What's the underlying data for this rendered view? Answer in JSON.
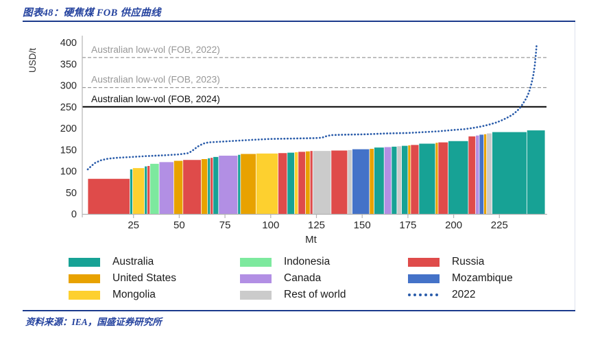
{
  "header": {
    "title": "图表48：硬焦煤 FOB 供应曲线"
  },
  "footer": {
    "source": "资料来源：IEA，国盛证券研究所"
  },
  "chart_data": {
    "type": "bar",
    "subtype": "variable-width-cost-curve-with-line",
    "title": "硬焦煤 FOB 供应曲线",
    "x_axis": {
      "label": "Mt",
      "min": 0,
      "max": 250,
      "ticks": [
        25,
        50,
        75,
        100,
        125,
        150,
        175,
        200,
        225
      ]
    },
    "y_axis": {
      "label": "USD/t",
      "min": 0,
      "max": 400,
      "ticks": [
        0,
        50,
        100,
        150,
        200,
        250,
        300,
        350,
        400
      ]
    },
    "grid": false,
    "legend_position": "bottom",
    "reference_lines": [
      {
        "label": "Australian low-vol (FOB, 2022)",
        "value": 365,
        "style": "dashed",
        "color": "#9a9a9a",
        "label_color": "#979797"
      },
      {
        "label": "Australian low-vol (FOB, 2023)",
        "value": 295,
        "style": "dashed",
        "color": "#9a9a9a",
        "label_color": "#979797"
      },
      {
        "label": "Australian low-vol (FOB, 2024)",
        "value": 250,
        "style": "solid",
        "color": "#000000",
        "label_color": "#111111"
      }
    ],
    "colors": {
      "Australia": "#17a295",
      "United States": "#e8a200",
      "Mongolia": "#fdd02f",
      "Indonesia": "#7de99e",
      "Canada": "#b28fe4",
      "Rest of world": "#cbcbcb",
      "Russia": "#df4b4a",
      "Mozambique": "#4472c8"
    },
    "segments_columns": [
      "country",
      "from_mt",
      "to_mt",
      "usd_per_t"
    ],
    "segments": [
      [
        "Russia",
        0,
        23,
        82
      ],
      [
        "Australia",
        23,
        24.5,
        104
      ],
      [
        "Mongolia",
        24.5,
        31,
        107
      ],
      [
        "Australia",
        31,
        32.5,
        111
      ],
      [
        "Russia",
        32.5,
        34,
        112
      ],
      [
        "Indonesia",
        34,
        39,
        117
      ],
      [
        "Canada",
        39,
        47,
        121
      ],
      [
        "United States",
        47,
        52,
        124
      ],
      [
        "Russia",
        52,
        62,
        126
      ],
      [
        "United States",
        62,
        65.5,
        128
      ],
      [
        "Australia",
        65.5,
        67,
        130
      ],
      [
        "Russia",
        67,
        68.5,
        131
      ],
      [
        "Australia",
        68.5,
        71.5,
        133
      ],
      [
        "Canada",
        71.5,
        82,
        136
      ],
      [
        "Australia",
        82,
        83.5,
        138
      ],
      [
        "United States",
        83.5,
        92,
        140
      ],
      [
        "Mongolia",
        92,
        104,
        141
      ],
      [
        "Russia",
        104,
        109,
        142
      ],
      [
        "Australia",
        109,
        113,
        143
      ],
      [
        "Mongolia",
        113,
        115,
        144
      ],
      [
        "Russia",
        115,
        119,
        145
      ],
      [
        "United States",
        119,
        121.5,
        146
      ],
      [
        "Russia",
        121.5,
        123,
        147
      ],
      [
        "Rest of world",
        123,
        133,
        147
      ],
      [
        "Russia",
        133,
        142,
        148
      ],
      [
        "Rest of world",
        142,
        144.5,
        149
      ],
      [
        "Mozambique",
        144.5,
        154,
        151
      ],
      [
        "United States",
        154,
        156.5,
        152
      ],
      [
        "Australia",
        156.5,
        162,
        155
      ],
      [
        "Canada",
        162,
        166,
        156
      ],
      [
        "Australia",
        166,
        169,
        157
      ],
      [
        "Rest of world",
        169,
        171.5,
        158
      ],
      [
        "Australia",
        171.5,
        175,
        159
      ],
      [
        "United States",
        175,
        176.5,
        160
      ],
      [
        "Russia",
        176.5,
        181,
        161
      ],
      [
        "Australia",
        181,
        190,
        164
      ],
      [
        "United States",
        190,
        191.5,
        166
      ],
      [
        "Russia",
        191.5,
        197,
        167
      ],
      [
        "Australia",
        197,
        208,
        170
      ],
      [
        "Russia",
        208,
        212,
        181
      ],
      [
        "Canada",
        212,
        214,
        183
      ],
      [
        "Mozambique",
        214,
        216.5,
        185
      ],
      [
        "United States",
        216.5,
        218,
        186
      ],
      [
        "Rest of world",
        218,
        221,
        188
      ],
      [
        "Australia",
        221,
        240,
        191
      ],
      [
        "Australia",
        240,
        250,
        195
      ]
    ],
    "line_series": {
      "name": "2022",
      "color": "#2a5caa",
      "style": "dotted",
      "points_mt_usd": [
        [
          0,
          104
        ],
        [
          2,
          112
        ],
        [
          4,
          119
        ],
        [
          7,
          125
        ],
        [
          11,
          129
        ],
        [
          16,
          131
        ],
        [
          24,
          133
        ],
        [
          32,
          135
        ],
        [
          42,
          137
        ],
        [
          50,
          139
        ],
        [
          55,
          142
        ],
        [
          57,
          147
        ],
        [
          60,
          157
        ],
        [
          63,
          164
        ],
        [
          66,
          167
        ],
        [
          74,
          169
        ],
        [
          82,
          171
        ],
        [
          90,
          173
        ],
        [
          100,
          175
        ],
        [
          112,
          176
        ],
        [
          124,
          177
        ],
        [
          128,
          178
        ],
        [
          130,
          181
        ],
        [
          133,
          184
        ],
        [
          140,
          185
        ],
        [
          152,
          186
        ],
        [
          164,
          188
        ],
        [
          175,
          189
        ],
        [
          184,
          191
        ],
        [
          192,
          193
        ],
        [
          200,
          196
        ],
        [
          206,
          198
        ],
        [
          211,
          201
        ],
        [
          215,
          204
        ],
        [
          219,
          208
        ],
        [
          223,
          213
        ],
        [
          226,
          218
        ],
        [
          229,
          224
        ],
        [
          232,
          231
        ],
        [
          234,
          238
        ],
        [
          236,
          246
        ],
        [
          237.5,
          255
        ],
        [
          239,
          265
        ],
        [
          240.5,
          277
        ],
        [
          241.7,
          291
        ],
        [
          242.7,
          307
        ],
        [
          243.6,
          325
        ],
        [
          244.3,
          345
        ],
        [
          244.8,
          366
        ],
        [
          245.2,
          386
        ],
        [
          245.4,
          398
        ]
      ]
    },
    "legend": [
      {
        "label": "Australia",
        "color": "#17a295",
        "swatch": "box"
      },
      {
        "label": "Indonesia",
        "color": "#7de99e",
        "swatch": "box"
      },
      {
        "label": "Russia",
        "color": "#df4b4a",
        "swatch": "box"
      },
      {
        "label": "United States",
        "color": "#e8a200",
        "swatch": "box"
      },
      {
        "label": "Canada",
        "color": "#b28fe4",
        "swatch": "box"
      },
      {
        "label": "Mozambique",
        "color": "#4472c8",
        "swatch": "box"
      },
      {
        "label": "Mongolia",
        "color": "#fdd02f",
        "swatch": "box"
      },
      {
        "label": "Rest of world",
        "color": "#cbcbcb",
        "swatch": "box"
      },
      {
        "label": "2022",
        "color": "#2a5caa",
        "swatch": "dots"
      }
    ]
  }
}
